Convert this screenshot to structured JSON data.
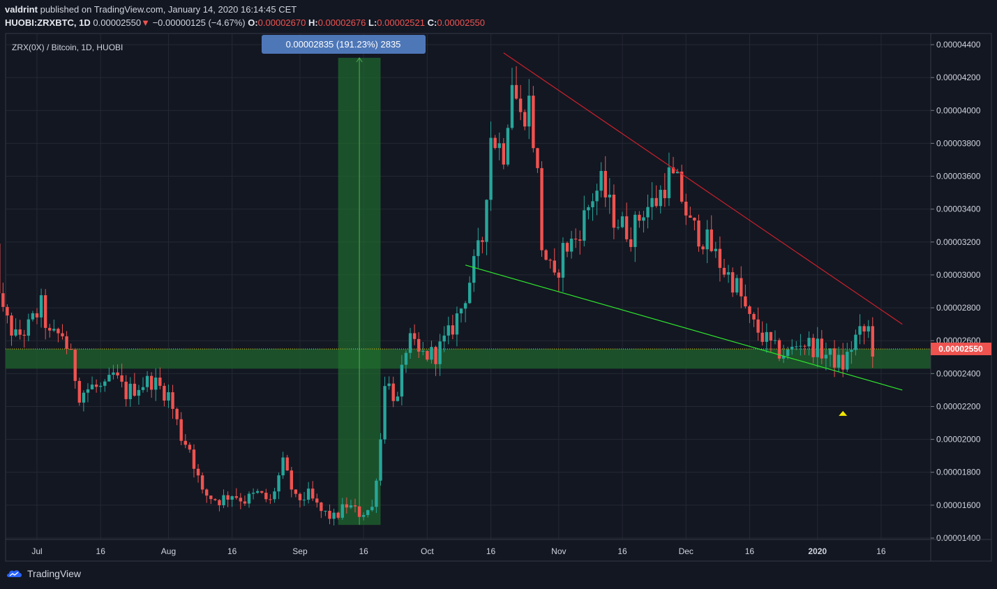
{
  "header": {
    "publisher": "valdrint",
    "published_text": "published on TradingView.com, January 14, 2020 16:14:45 CET",
    "symbol": "HUOBI:ZRXBTC, 1D",
    "last_price": "0.00002550",
    "change_arrow": "▼",
    "change": "−0.00000125 (−4.67%)",
    "o_label": "O:",
    "o_value": "0.00002670",
    "h_label": "H:",
    "h_value": "0.00002676",
    "l_label": "L:",
    "l_value": "0.00002521",
    "c_label": "C:",
    "c_value": "0.00002550"
  },
  "legend_title": "ZRX(0X) / Bitcoin, 1D, HUOBI",
  "measure_label": "0.00002835 (191.23%) 2835",
  "current_price_tag": "0.00002550",
  "brand": "TradingView",
  "colors": {
    "background": "#131722",
    "up": "#26a69a",
    "down": "#ef5350",
    "resistance_line": "#d0202a",
    "support_line": "#2ee62e",
    "zone": "#1f5a2c",
    "measure_tag": "#4e77b8",
    "marker": "#f2e600"
  },
  "chart_data": {
    "type": "candlestick",
    "ylim": [
      1.4e-05,
      4.45e-05
    ],
    "x_tick_labels": [
      "Jul",
      "16",
      "Aug",
      "16",
      "Sep",
      "16",
      "Oct",
      "16",
      "Nov",
      "16",
      "Dec",
      "16",
      "2020",
      "16"
    ],
    "y_tick_labels": [
      "0.00004400",
      "0.00004200",
      "0.00004000",
      "0.00003800",
      "0.00003600",
      "0.00003400",
      "0.00003200",
      "0.00003000",
      "0.00002800",
      "0.00002600",
      "0.00002400",
      "0.00002200",
      "0.00002000",
      "0.00001800",
      "0.00001600",
      "0.00001400"
    ],
    "close_path": [
      [
        "2019-06-20",
        3.29e-05
      ],
      [
        "2019-06-23",
        2.76e-05
      ],
      [
        "2019-06-26",
        2.62e-05
      ],
      [
        "2019-06-29",
        2.68e-05
      ],
      [
        "2019-07-02",
        2.81e-05
      ],
      [
        "2019-07-04",
        2.62e-05
      ],
      [
        "2019-07-07",
        2.64e-05
      ],
      [
        "2019-07-09",
        2.49e-05
      ],
      [
        "2019-07-11",
        2.28e-05
      ],
      [
        "2019-07-14",
        2.32e-05
      ],
      [
        "2019-07-17",
        2.3e-05
      ],
      [
        "2019-07-19",
        2.39e-05
      ],
      [
        "2019-07-22",
        2.28e-05
      ],
      [
        "2019-07-25",
        2.33e-05
      ],
      [
        "2019-07-28",
        2.36e-05
      ],
      [
        "2019-08-01",
        2.27e-05
      ],
      [
        "2019-08-04",
        2.02e-05
      ],
      [
        "2019-08-06",
        1.95e-05
      ],
      [
        "2019-08-09",
        1.67e-05
      ],
      [
        "2019-08-13",
        1.63e-05
      ],
      [
        "2019-08-16",
        1.67e-05
      ],
      [
        "2019-08-19",
        1.63e-05
      ],
      [
        "2019-08-22",
        1.67e-05
      ],
      [
        "2019-08-25",
        1.62e-05
      ],
      [
        "2019-08-28",
        1.85e-05
      ],
      [
        "2019-08-31",
        1.63e-05
      ],
      [
        "2019-09-03",
        1.66e-05
      ],
      [
        "2019-09-06",
        1.56e-05
      ],
      [
        "2019-09-09",
        1.52e-05
      ],
      [
        "2019-09-12",
        1.6e-05
      ],
      [
        "2019-09-15",
        1.55e-05
      ],
      [
        "2019-09-18",
        1.58e-05
      ],
      [
        "2019-09-20",
        2e-05
      ],
      [
        "2019-09-21",
        2.37e-05
      ],
      [
        "2019-09-24",
        2.23e-05
      ],
      [
        "2019-09-26",
        2.56e-05
      ],
      [
        "2019-09-27",
        2.59e-05
      ],
      [
        "2019-09-29",
        2.51e-05
      ],
      [
        "2019-10-03",
        2.52e-05
      ],
      [
        "2019-10-06",
        2.63e-05
      ],
      [
        "2019-10-09",
        2.8e-05
      ],
      [
        "2019-10-12",
        3.05e-05
      ],
      [
        "2019-10-14",
        3.22e-05
      ],
      [
        "2019-10-16",
        3.85e-05
      ],
      [
        "2019-10-19",
        3.75e-05
      ],
      [
        "2019-10-21",
        4.2e-05
      ],
      [
        "2019-10-23",
        3.95e-05
      ],
      [
        "2019-10-25",
        4.05e-05
      ],
      [
        "2019-10-27",
        3.6e-05
      ],
      [
        "2019-10-28",
        3.18e-05
      ],
      [
        "2019-10-31",
        2.95e-05
      ],
      [
        "2019-11-02",
        3.15e-05
      ],
      [
        "2019-11-05",
        3.22e-05
      ],
      [
        "2019-11-09",
        3.48e-05
      ],
      [
        "2019-11-11",
        3.55e-05
      ],
      [
        "2019-11-14",
        3.35e-05
      ],
      [
        "2019-11-18",
        3.25e-05
      ],
      [
        "2019-11-21",
        3.4e-05
      ],
      [
        "2019-11-24",
        3.45e-05
      ],
      [
        "2019-11-27",
        3.6e-05
      ],
      [
        "2019-11-29",
        3.55e-05
      ],
      [
        "2019-12-02",
        3.3e-05
      ],
      [
        "2019-12-06",
        3.2e-05
      ],
      [
        "2019-12-10",
        3.03e-05
      ],
      [
        "2019-12-13",
        2.93e-05
      ],
      [
        "2019-12-16",
        2.72e-05
      ],
      [
        "2019-12-19",
        2.63e-05
      ],
      [
        "2019-12-22",
        2.54e-05
      ],
      [
        "2019-12-25",
        2.52e-05
      ],
      [
        "2019-12-28",
        2.6e-05
      ],
      [
        "2020-01-01",
        2.55e-05
      ],
      [
        "2020-01-04",
        2.5e-05
      ],
      [
        "2020-01-07",
        2.45e-05
      ],
      [
        "2020-01-10",
        2.62e-05
      ],
      [
        "2020-01-13",
        2.67e-05
      ],
      [
        "2020-01-14",
        2.55e-05
      ]
    ],
    "annotations": {
      "resistance_line": {
        "from": [
          "2019-10-19",
          4.35e-05
        ],
        "to": [
          "2020-01-21",
          2.7e-05
        ]
      },
      "support_line": {
        "from": [
          "2019-10-10",
          3.06e-05
        ],
        "to": [
          "2020-01-21",
          2.3e-05
        ]
      },
      "support_zone": [
        2.43e-05,
        2.55e-05
      ],
      "measure_range": {
        "from": [
          "2019-09-10",
          1.48e-05
        ],
        "to": [
          "2019-09-20",
          4.32e-05
        ]
      },
      "marker": [
        "2020-01-07",
        2.16e-05
      ]
    }
  }
}
